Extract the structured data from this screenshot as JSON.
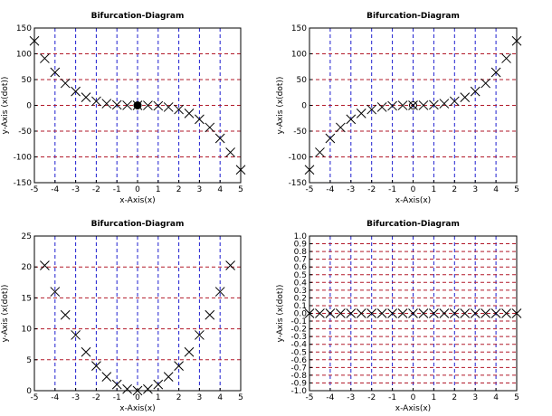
{
  "chart_data": [
    {
      "type": "scatter",
      "title": "Bifurcation-Diagram",
      "xlabel": "x-Axis(x)",
      "ylabel": "y-Axis (x(dot))",
      "xlim": [
        -5,
        5
      ],
      "ylim": [
        -150,
        150
      ],
      "xticks": [
        -5,
        -4,
        -3,
        -2,
        -1,
        0,
        1,
        2,
        3,
        4,
        5
      ],
      "yticks": [
        -150,
        -100,
        -50,
        0,
        50,
        100,
        150
      ],
      "grid": true,
      "marker": "x",
      "special_points": [
        {
          "x": 0,
          "y": 0,
          "marker": "filled-circle"
        }
      ],
      "series": [
        {
          "x": [
            -5,
            -4.5,
            -4,
            -3.5,
            -3,
            -2.5,
            -2,
            -1.5,
            -1,
            -0.5,
            0,
            0.5,
            1,
            1.5,
            2,
            2.5,
            3,
            3.5,
            4,
            4.5,
            5
          ],
          "y": [
            125,
            91.1,
            64,
            42.9,
            27,
            15.6,
            8,
            3.4,
            1,
            0.1,
            0,
            -0.1,
            -1,
            -3.4,
            -8,
            -15.6,
            -27,
            -42.9,
            -64,
            -91.1,
            -125
          ]
        }
      ]
    },
    {
      "type": "scatter",
      "title": "Bifurcation-Diagram",
      "xlabel": "x-Axis(x)",
      "ylabel": "y-Axis (x(dot))",
      "xlim": [
        -5,
        5
      ],
      "ylim": [
        -150,
        150
      ],
      "xticks": [
        -5,
        -4,
        -3,
        -2,
        -1,
        0,
        1,
        2,
        3,
        4,
        5
      ],
      "yticks": [
        -150,
        -100,
        -50,
        0,
        50,
        100,
        150
      ],
      "grid": true,
      "marker": "x",
      "special_points": [
        {
          "x": 0,
          "y": 0,
          "marker": "open-circle"
        }
      ],
      "series": [
        {
          "x": [
            -5,
            -4.5,
            -4,
            -3.5,
            -3,
            -2.5,
            -2,
            -1.5,
            -1,
            -0.5,
            0,
            0.5,
            1,
            1.5,
            2,
            2.5,
            3,
            3.5,
            4,
            4.5,
            5
          ],
          "y": [
            -125,
            -91.1,
            -64,
            -42.9,
            -27,
            -15.6,
            -8,
            -3.4,
            -1,
            -0.1,
            0,
            0.1,
            1,
            3.4,
            8,
            15.6,
            27,
            42.9,
            64,
            91.1,
            125
          ]
        }
      ]
    },
    {
      "type": "scatter",
      "title": "Bifurcation-Diagram",
      "xlabel": "x-Axis(x)",
      "ylabel": "y-Axis (x(dot))",
      "xlim": [
        -5,
        5
      ],
      "ylim": [
        0,
        25
      ],
      "xticks": [
        -5,
        -4,
        -3,
        -2,
        -1,
        0,
        1,
        2,
        3,
        4,
        5
      ],
      "yticks": [
        0,
        5,
        10,
        15,
        20,
        25
      ],
      "grid": true,
      "marker": "x",
      "special_points": [],
      "series": [
        {
          "x": [
            -4.5,
            -4,
            -3.5,
            -3,
            -2.5,
            -2,
            -1.5,
            -1,
            -0.5,
            0,
            0.5,
            1,
            1.5,
            2,
            2.5,
            3,
            3.5,
            4,
            4.5
          ],
          "y": [
            20.25,
            16,
            12.25,
            9,
            6.25,
            4,
            2.25,
            1,
            0.25,
            0,
            0.25,
            1,
            2.25,
            4,
            6.25,
            9,
            12.25,
            16,
            20.25
          ]
        }
      ]
    },
    {
      "type": "scatter",
      "title": "Bifurcation-Diagram",
      "xlabel": "x-Axis(x)",
      "ylabel": "y-Axis (x(dot))",
      "xlim": [
        -5,
        5
      ],
      "ylim": [
        -1,
        1
      ],
      "xticks": [
        -5,
        -4,
        -3,
        -2,
        -1,
        0,
        1,
        2,
        3,
        4,
        5
      ],
      "yticks": [
        -1.0,
        -0.9,
        -0.8,
        -0.7,
        -0.6,
        -0.5,
        -0.4,
        -0.3,
        -0.2,
        -0.1,
        0.0,
        0.1,
        0.2,
        0.3,
        0.4,
        0.5,
        0.6,
        0.7,
        0.8,
        0.9,
        1.0
      ],
      "ytick_decimals": 1,
      "grid": true,
      "marker": "x",
      "special_points": [],
      "series": [
        {
          "x": [
            -5,
            -4.5,
            -4,
            -3.5,
            -3,
            -2.5,
            -2,
            -1.5,
            -1,
            -0.5,
            0,
            0.5,
            1,
            1.5,
            2,
            2.5,
            3,
            3.5,
            4,
            4.5,
            5
          ],
          "y": [
            0,
            0,
            0,
            0,
            0,
            0,
            0,
            0,
            0,
            0,
            0,
            0,
            0,
            0,
            0,
            0,
            0,
            0,
            0,
            0,
            0
          ]
        }
      ]
    }
  ]
}
